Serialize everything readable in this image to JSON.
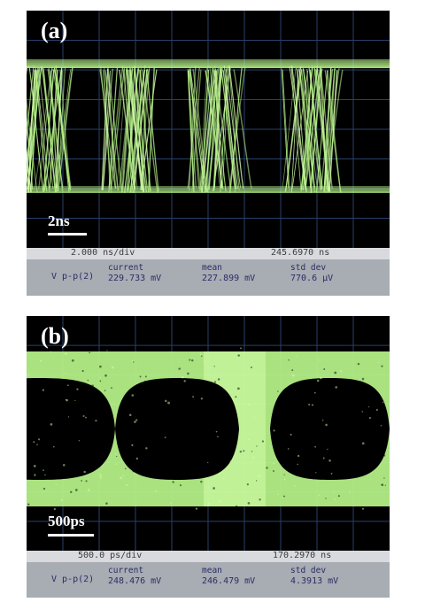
{
  "panel_a": {
    "label": "(a)",
    "scale_label": "2ns",
    "timebase": "2.000 ns/div",
    "position": "245.6970 ns",
    "measurement": {
      "name": "V p-p(2)",
      "current_header": "current",
      "current": "229.733 mV",
      "mean_header": "mean",
      "mean": "227.899 mV",
      "std_header": "std dev",
      "std": "770.6 µV"
    }
  },
  "panel_b": {
    "label": "(b)",
    "scale_label": "500ps",
    "timebase": "500.0 ps/div",
    "position": "170.2970 ns",
    "measurement": {
      "name": "V p-p(2)",
      "current_header": "current",
      "current": "248.476 mV",
      "mean_header": "mean",
      "mean": "246.479 mV",
      "std_header": "std dev",
      "std": "4.3913 mV"
    }
  },
  "colors": {
    "trace": "#b8f58a",
    "trace_bright": "#d8ffb0",
    "grid": "#2a3f6a",
    "screen_bg": "#000000",
    "measure_text": "#2a2d66",
    "measure_bg": "#a8acb3",
    "status_bg": "#d8dadd"
  }
}
